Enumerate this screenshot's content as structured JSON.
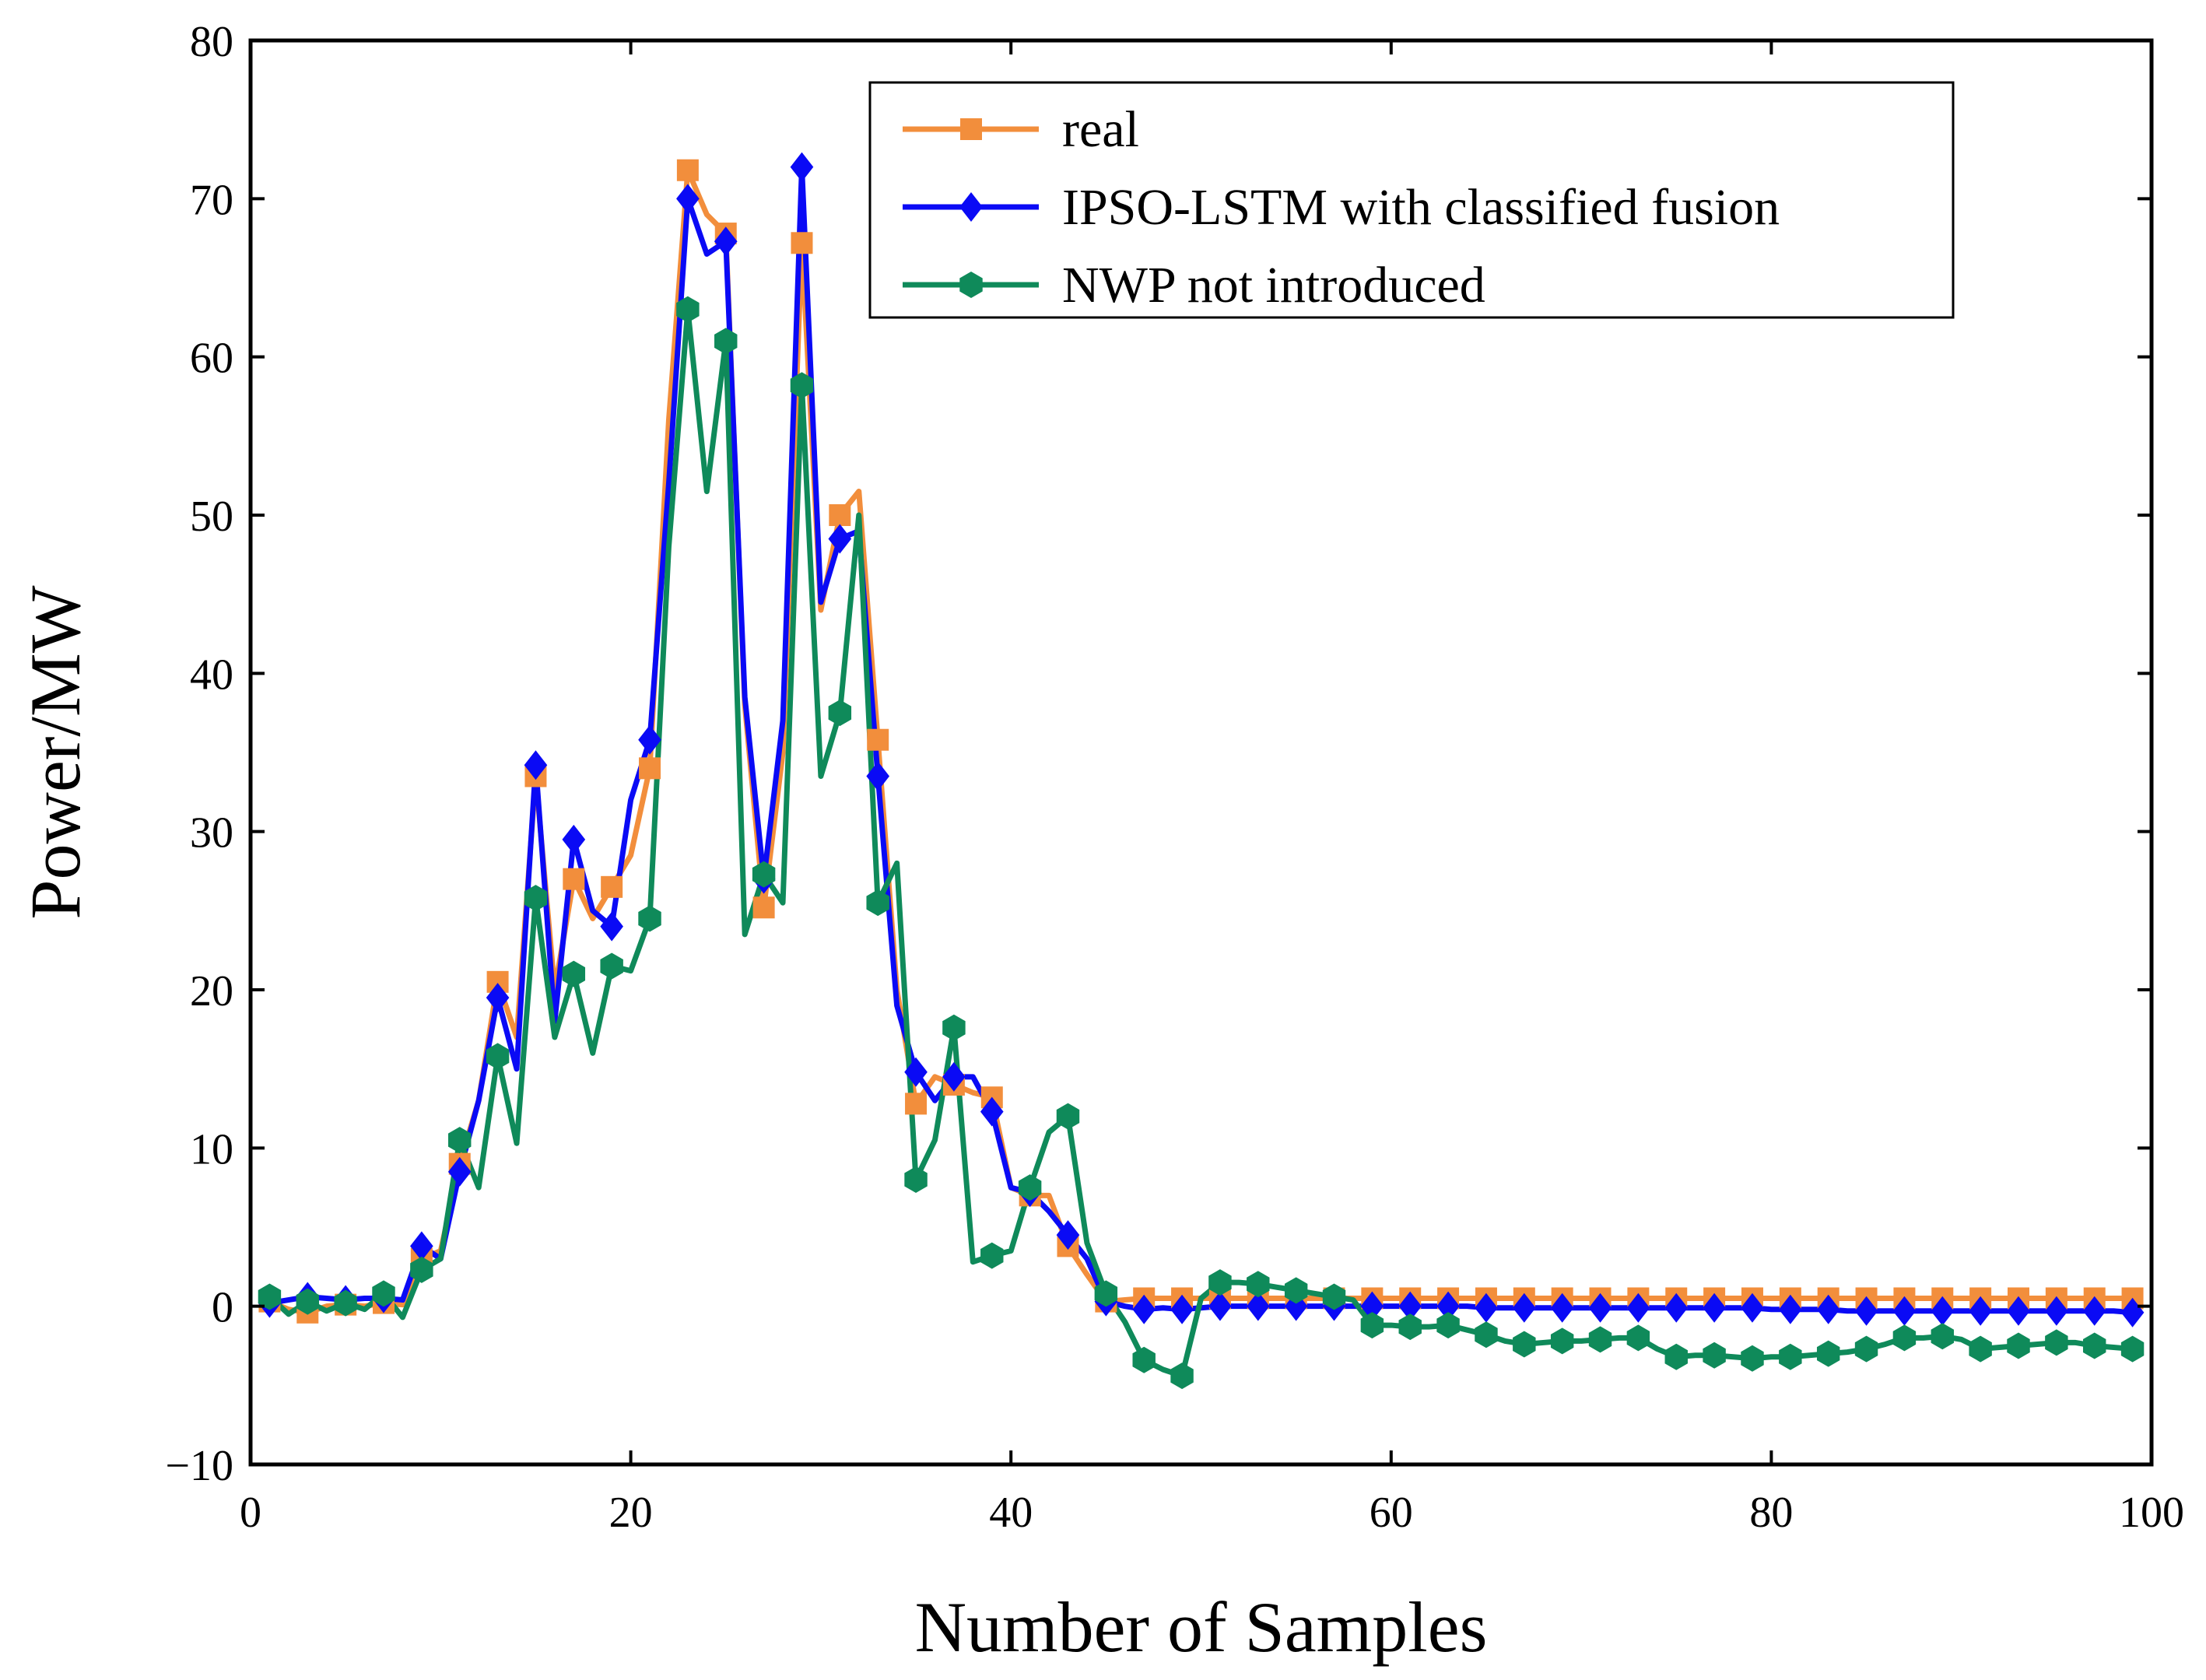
{
  "chart_data": {
    "type": "line",
    "title": "",
    "xlabel": "Number of Samples",
    "ylabel": "Power/MW",
    "xlim": [
      0,
      100
    ],
    "ylim": [
      -10,
      80
    ],
    "xticks": [
      0,
      20,
      40,
      60,
      80,
      100
    ],
    "yticks": [
      -10,
      0,
      10,
      20,
      30,
      40,
      50,
      60,
      70,
      80
    ],
    "ytick_labels": [
      "−10",
      "0",
      "10",
      "20",
      "30",
      "40",
      "50",
      "60",
      "70",
      "80"
    ],
    "grid": false,
    "legend_position": "top-right",
    "series": [
      {
        "name": "real",
        "color": "#f28e3c",
        "marker": "square",
        "marker_every": 2,
        "values": [
          0.3,
          -0.2,
          -0.4,
          0.0,
          0.1,
          0.0,
          0.2,
          0.1,
          3.0,
          3.5,
          9.0,
          13.0,
          20.5,
          17.0,
          33.5,
          20.0,
          27.0,
          24.5,
          26.5,
          28.5,
          34.0,
          56.0,
          71.8,
          69.0,
          67.8,
          38.0,
          25.2,
          35.0,
          67.2,
          44.0,
          50.0,
          51.5,
          35.8,
          20.0,
          12.8,
          14.5,
          14.0,
          13.5,
          13.2,
          7.5,
          7.0,
          7.0,
          3.8,
          2.0,
          0.3,
          0.4,
          0.5,
          0.5,
          0.5,
          0.5,
          0.5,
          0.5,
          0.5,
          0.5,
          0.5,
          0.5,
          0.5,
          0.5,
          0.5,
          0.5,
          0.5,
          0.5,
          0.5,
          0.5,
          0.5,
          0.5,
          0.5,
          0.5,
          0.5,
          0.5,
          0.5,
          0.5,
          0.5,
          0.5,
          0.5,
          0.5,
          0.5,
          0.5,
          0.5,
          0.5,
          0.5,
          0.5,
          0.5,
          0.5,
          0.5,
          0.5,
          0.5,
          0.5,
          0.5,
          0.5,
          0.5,
          0.5,
          0.5,
          0.5,
          0.5,
          0.5,
          0.5,
          0.5,
          0.5
        ]
      },
      {
        "name": "IPSO-LSTM with classified fusion",
        "color": "#0a0af5",
        "marker": "diamond",
        "marker_every": 2,
        "values": [
          0.2,
          0.4,
          0.6,
          0.5,
          0.4,
          0.5,
          0.5,
          0.4,
          3.8,
          3.0,
          8.5,
          13.0,
          19.5,
          15.0,
          34.2,
          18.0,
          29.5,
          25.0,
          24.0,
          32.0,
          35.8,
          52.0,
          70.0,
          66.5,
          67.3,
          38.5,
          27.0,
          37.0,
          72.0,
          44.5,
          48.5,
          49.0,
          33.5,
          19.0,
          14.8,
          13.0,
          14.5,
          14.5,
          12.3,
          7.5,
          7.2,
          6.0,
          4.5,
          3.0,
          0.3,
          0.0,
          -0.2,
          -0.1,
          -0.2,
          -0.1,
          0.0,
          0.0,
          0.0,
          0.0,
          0.0,
          0.0,
          0.0,
          0.0,
          0.0,
          0.0,
          0.0,
          0.0,
          0.0,
          0.0,
          -0.1,
          -0.1,
          -0.1,
          -0.1,
          -0.1,
          -0.1,
          -0.1,
          -0.1,
          -0.1,
          -0.1,
          -0.1,
          -0.1,
          -0.1,
          -0.1,
          -0.1,
          -0.2,
          -0.2,
          -0.2,
          -0.2,
          -0.3,
          -0.3,
          -0.3,
          -0.3,
          -0.3,
          -0.3,
          -0.3,
          -0.3,
          -0.3,
          -0.3,
          -0.3,
          -0.3,
          -0.3,
          -0.3,
          -0.3,
          -0.4
        ]
      },
      {
        "name": "NWP not introduced",
        "color": "#0f8a5a",
        "marker": "hexagon",
        "marker_every": 2,
        "values": [
          0.6,
          -0.5,
          0.3,
          -0.3,
          0.2,
          -0.2,
          0.8,
          -0.7,
          2.3,
          3.0,
          10.5,
          7.5,
          15.8,
          10.3,
          25.8,
          17.0,
          21.0,
          16.0,
          21.5,
          21.2,
          24.5,
          48.0,
          63.0,
          51.5,
          61.0,
          23.5,
          27.3,
          25.5,
          58.2,
          33.5,
          37.5,
          50.0,
          25.5,
          28.0,
          8.0,
          10.5,
          17.6,
          2.8,
          3.2,
          3.5,
          7.5,
          11.0,
          12.0,
          4.0,
          0.8,
          -1.0,
          -3.4,
          -4.0,
          -4.4,
          0.5,
          1.5,
          1.5,
          1.4,
          1.2,
          1.0,
          0.8,
          0.6,
          0.4,
          -1.2,
          -1.2,
          -1.3,
          -1.3,
          -1.2,
          -1.5,
          -1.8,
          -2.2,
          -2.4,
          -2.3,
          -2.2,
          -2.2,
          -2.1,
          -2.0,
          -2.0,
          -2.7,
          -3.2,
          -3.1,
          -3.1,
          -3.2,
          -3.3,
          -3.2,
          -3.2,
          -3.1,
          -3.0,
          -2.9,
          -2.7,
          -2.4,
          -2.0,
          -2.0,
          -1.9,
          -2.1,
          -2.7,
          -2.6,
          -2.5,
          -2.4,
          -2.3,
          -2.3,
          -2.5,
          -2.6,
          -2.7
        ]
      }
    ]
  }
}
